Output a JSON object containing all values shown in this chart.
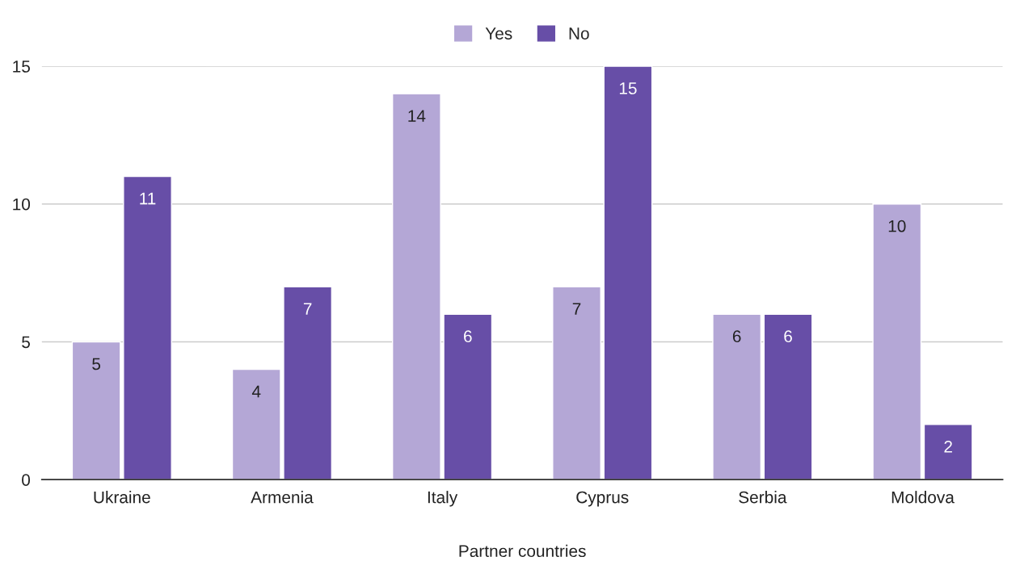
{
  "chart_data": {
    "type": "bar",
    "xlabel": "Partner countries",
    "categories": [
      "Ukraine",
      "Armenia",
      "Italy",
      "Cyprus",
      "Serbia",
      "Moldova"
    ],
    "series": [
      {
        "name": "Yes",
        "color": "#b4a7d6",
        "values": [
          5,
          4,
          14,
          7,
          6,
          10
        ]
      },
      {
        "name": "No",
        "color": "#674ea7",
        "values": [
          11,
          7,
          6,
          15,
          6,
          2
        ]
      }
    ],
    "ylim": [
      0,
      15
    ],
    "yticks": [
      0,
      5,
      10,
      15
    ],
    "grid": "y",
    "legend": "top",
    "data_labels": true
  }
}
